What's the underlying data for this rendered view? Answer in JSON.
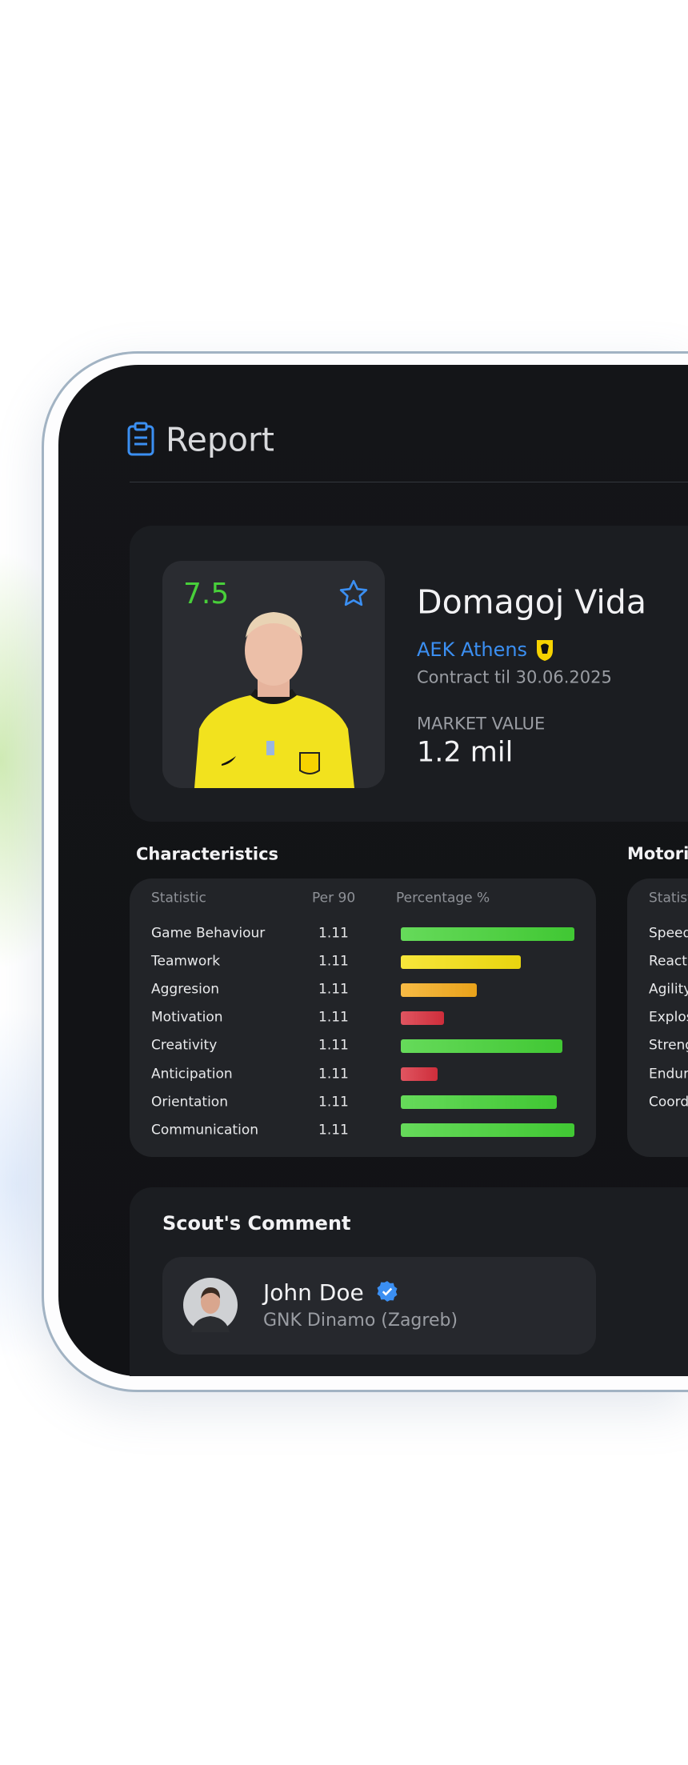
{
  "header": {
    "title": "Report"
  },
  "player": {
    "rating": "7.5",
    "name": "Domagoj Vida",
    "club": "AEK Athens",
    "contract": "Contract til 30.06.2025",
    "market_value_label": "MARKET VALUE",
    "market_value": "1.2 mil"
  },
  "characteristics": {
    "title": "Characteristics",
    "columns": [
      "Statistic",
      "Per 90",
      "Percentage %"
    ],
    "rows": [
      {
        "name": "Game Behaviour",
        "per90": "1.11",
        "percentage": 100,
        "color": "#44d236"
      },
      {
        "name": "Teamwork",
        "per90": "1.11",
        "percentage": 69,
        "color": "#f5e010"
      },
      {
        "name": "Aggresion",
        "per90": "1.11",
        "percentage": 44,
        "color": "#f5ab1c"
      },
      {
        "name": "Motivation",
        "per90": "1.11",
        "percentage": 25,
        "color": "#d9303e"
      },
      {
        "name": "Creativity",
        "per90": "1.11",
        "percentage": 93,
        "color": "#44d236"
      },
      {
        "name": "Anticipation",
        "per90": "1.11",
        "percentage": 21,
        "color": "#d9303e"
      },
      {
        "name": "Orientation",
        "per90": "1.11",
        "percentage": 90,
        "color": "#44d236"
      },
      {
        "name": "Communication",
        "per90": "1.11",
        "percentage": 100,
        "color": "#44d236"
      }
    ]
  },
  "motoric": {
    "title": "Motoric",
    "column": "Statistic",
    "rows": [
      "Speed",
      "Reaction",
      "Agility",
      "Explosiveness",
      "Strength",
      "Endurance",
      "Coordination"
    ]
  },
  "scout_comment": {
    "title": "Scout's Comment",
    "scout": {
      "name": "John Doe",
      "club": "GNK Dinamo (Zagreb)"
    }
  }
}
